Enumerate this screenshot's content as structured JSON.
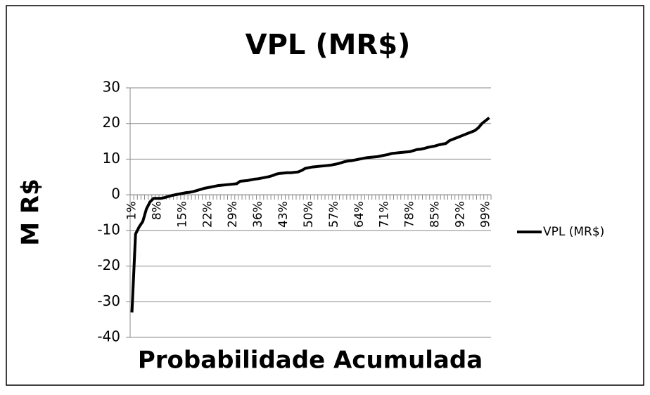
{
  "chart_data": {
    "type": "line",
    "title": "VPL (MR$)",
    "y_label": "M R$",
    "x_label": "Probabilidade Acumulada",
    "categories": [
      "1%",
      null,
      null,
      null,
      null,
      null,
      null,
      "8%",
      null,
      null,
      null,
      null,
      null,
      null,
      "15%",
      null,
      null,
      null,
      null,
      null,
      null,
      "22%",
      null,
      null,
      null,
      null,
      null,
      null,
      "29%",
      null,
      null,
      null,
      null,
      null,
      null,
      "36%",
      null,
      null,
      null,
      null,
      null,
      null,
      "43%",
      null,
      null,
      null,
      null,
      null,
      null,
      "50%",
      null,
      null,
      null,
      null,
      null,
      null,
      "57%",
      null,
      null,
      null,
      null,
      null,
      null,
      "64%",
      null,
      null,
      null,
      null,
      null,
      null,
      "71%",
      null,
      null,
      null,
      null,
      null,
      null,
      "78%",
      null,
      null,
      null,
      null,
      null,
      null,
      "85%",
      null,
      null,
      null,
      null,
      null,
      null,
      "92%",
      null,
      null,
      null,
      null,
      null,
      null,
      "99%",
      null
    ],
    "series": [
      {
        "name": "VPL (MR$)",
        "color": "#000000",
        "values": [
          -33,
          -11,
          -9,
          -7.5,
          -4,
          -2,
          -1,
          -1,
          -1,
          -0.8,
          -0.5,
          -0.2,
          0,
          0.2,
          0.4,
          0.6,
          0.7,
          0.9,
          1.2,
          1.5,
          1.8,
          2.0,
          2.2,
          2.4,
          2.6,
          2.7,
          2.8,
          2.9,
          3.0,
          3.1,
          3.8,
          3.9,
          4.0,
          4.2,
          4.4,
          4.5,
          4.7,
          4.9,
          5.1,
          5.4,
          5.8,
          6.0,
          6.1,
          6.2,
          6.2,
          6.3,
          6.4,
          6.8,
          7.4,
          7.6,
          7.8,
          7.9,
          8.0,
          8.1,
          8.2,
          8.3,
          8.5,
          8.7,
          9.0,
          9.3,
          9.5,
          9.6,
          9.8,
          10.0,
          10.2,
          10.4,
          10.5,
          10.6,
          10.7,
          10.9,
          11.1,
          11.3,
          11.6,
          11.7,
          11.8,
          11.9,
          12.0,
          12.1,
          12.4,
          12.7,
          12.8,
          13.0,
          13.3,
          13.5,
          13.7,
          14.0,
          14.2,
          14.4,
          15.2,
          15.6,
          16.0,
          16.4,
          16.8,
          17.2,
          17.6,
          18.0,
          18.8,
          20.0,
          20.8,
          21.6
        ]
      }
    ],
    "ylim": [
      -40,
      30
    ],
    "yticks": [
      -40,
      -30,
      -20,
      -10,
      0,
      10,
      20,
      30
    ],
    "grid": true,
    "legend": "right"
  }
}
